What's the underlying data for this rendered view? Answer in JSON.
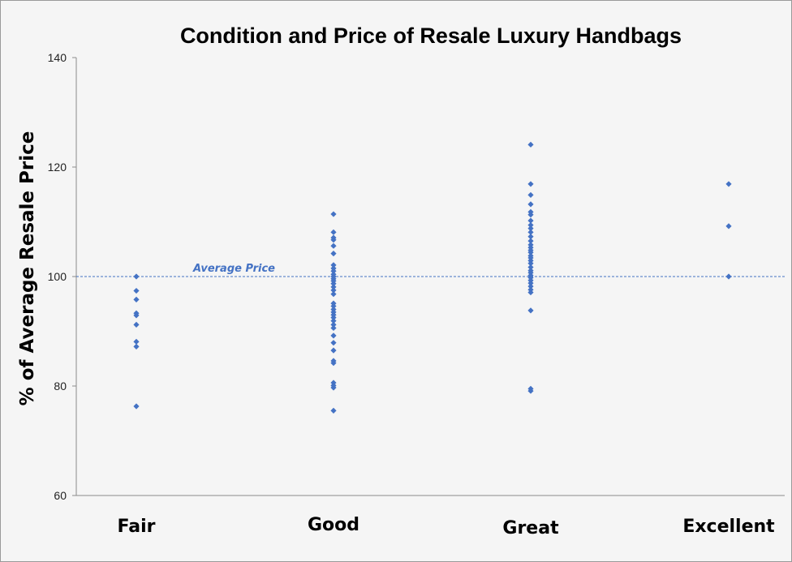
{
  "chart_data": {
    "type": "scatter",
    "title": "Condition and Price of Resale Luxury Handbags",
    "xlabel": "",
    "ylabel": "% of Average Resale Price",
    "categories": [
      "Fair",
      "Good",
      "Great",
      "Excellent"
    ],
    "ylim": [
      60,
      140
    ],
    "yticks": [
      60,
      80,
      100,
      120,
      140
    ],
    "grid": false,
    "marker_color": "#4472c4",
    "reference_line": {
      "y": 100,
      "label": "Average Price",
      "color": "#4472c4"
    },
    "series": [
      {
        "category": "Fair",
        "values": [
          100,
          97.4,
          95.8,
          93.3,
          92.9,
          91.2,
          88.1,
          87.2,
          76.3
        ]
      },
      {
        "category": "Good",
        "values": [
          111.4,
          108.1,
          107.1,
          106.7,
          105.6,
          104.2,
          102.1,
          101.5,
          101,
          100.4,
          100,
          99.6,
          99.2,
          98.7,
          98.1,
          97.5,
          96.8,
          95.1,
          94.6,
          94,
          93.5,
          93,
          92.5,
          91.9,
          91.2,
          90.6,
          89.2,
          87.9,
          86.5,
          84.6,
          84.2,
          80.6,
          80.1,
          79.7,
          75.5
        ]
      },
      {
        "category": "Great",
        "values": [
          124.1,
          116.9,
          114.9,
          113.2,
          111.8,
          111.3,
          110.2,
          109.4,
          108.8,
          108.1,
          107.3,
          106.5,
          105.8,
          105.3,
          104.8,
          104.4,
          103.8,
          103.4,
          102.9,
          102.4,
          101.7,
          101.1,
          100.7,
          100.2,
          99.8,
          99.3,
          98.8,
          98.2,
          97.6,
          97.1,
          93.8,
          79.5,
          79.1
        ]
      },
      {
        "category": "Excellent",
        "values": [
          116.9,
          109.2,
          100
        ]
      }
    ]
  }
}
